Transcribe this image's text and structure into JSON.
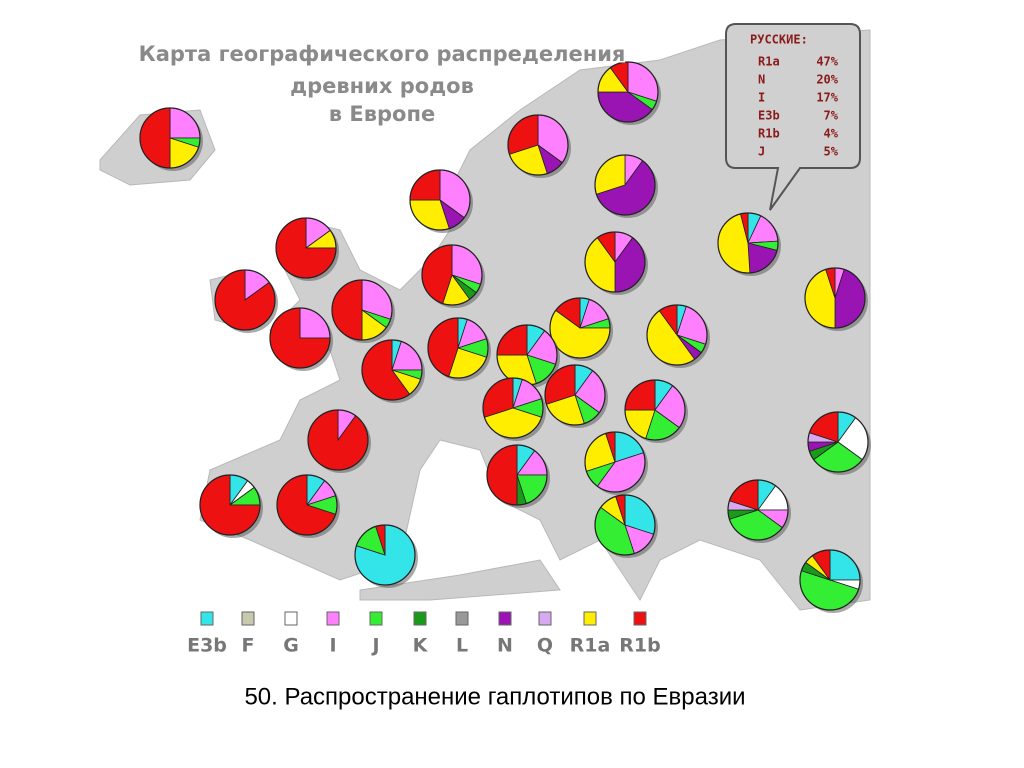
{
  "map": {
    "title": [
      "Карта географического распределения",
      "древних родов",
      "в Европе"
    ],
    "callout": {
      "title": "РУССКИЕ:",
      "names": [
        "R1a",
        "N",
        "I",
        "E3b",
        "R1b",
        "J"
      ],
      "values": [
        47,
        20,
        17,
        7,
        4,
        5
      ],
      "value_labels": [
        "47%",
        "20%",
        "17%",
        "7%",
        "4%",
        "5%"
      ]
    },
    "legend": [
      {
        "name": "E3b",
        "color": "#33e4e8"
      },
      {
        "name": "F",
        "color": "#c8c8ac"
      },
      {
        "name": "G",
        "color": "#ffffff"
      },
      {
        "name": "I",
        "color": "#ff80ff"
      },
      {
        "name": "J",
        "color": "#33ee33"
      },
      {
        "name": "K",
        "color": "#1a9a1a"
      },
      {
        "name": "L",
        "color": "#999999"
      },
      {
        "name": "N",
        "color": "#9a14b4"
      },
      {
        "name": "Q",
        "color": "#d8a8f0"
      },
      {
        "name": "R1a",
        "color": "#ffee00"
      },
      {
        "name": "R1b",
        "color": "#ee1111"
      }
    ],
    "pies": [
      {
        "values": [
          0,
          0,
          0,
          25,
          5,
          0,
          0,
          0,
          0,
          20,
          50
        ]
      },
      {
        "values": [
          0,
          0,
          0,
          30,
          5,
          0,
          0,
          40,
          0,
          15,
          10
        ]
      },
      {
        "values": [
          0,
          0,
          0,
          35,
          0,
          0,
          0,
          10,
          0,
          25,
          30
        ]
      },
      {
        "values": [
          0,
          0,
          0,
          35,
          0,
          0,
          0,
          10,
          0,
          30,
          25
        ]
      },
      {
        "values": [
          0,
          0,
          0,
          10,
          0,
          0,
          0,
          60,
          0,
          30,
          0
        ]
      },
      {
        "values": [
          0,
          0,
          0,
          15,
          0,
          0,
          0,
          0,
          0,
          10,
          75
        ]
      },
      {
        "values": [
          0,
          0,
          0,
          10,
          0,
          0,
          0,
          40,
          0,
          40,
          10
        ]
      },
      {
        "values": [
          7,
          0,
          0,
          17,
          5,
          0,
          0,
          20,
          0,
          47,
          4
        ]
      },
      {
        "values": [
          0,
          0,
          0,
          5,
          0,
          0,
          0,
          45,
          0,
          45,
          5
        ]
      },
      {
        "values": [
          0,
          0,
          0,
          15,
          0,
          0,
          0,
          0,
          0,
          0,
          85
        ]
      },
      {
        "values": [
          0,
          0,
          0,
          30,
          5,
          5,
          0,
          0,
          0,
          15,
          45
        ]
      },
      {
        "values": [
          0,
          0,
          0,
          25,
          0,
          0,
          0,
          0,
          0,
          0,
          75
        ]
      },
      {
        "values": [
          0,
          0,
          0,
          30,
          5,
          0,
          0,
          0,
          0,
          15,
          50
        ]
      },
      {
        "values": [
          5,
          0,
          0,
          15,
          5,
          0,
          0,
          0,
          0,
          60,
          15
        ]
      },
      {
        "values": [
          5,
          0,
          0,
          25,
          5,
          0,
          0,
          5,
          0,
          50,
          10
        ]
      },
      {
        "values": [
          5,
          0,
          0,
          20,
          5,
          0,
          0,
          0,
          0,
          10,
          60
        ]
      },
      {
        "values": [
          5,
          0,
          0,
          15,
          10,
          0,
          0,
          0,
          0,
          25,
          45
        ]
      },
      {
        "values": [
          10,
          0,
          0,
          20,
          15,
          0,
          0,
          0,
          0,
          30,
          25
        ]
      },
      {
        "values": [
          5,
          0,
          0,
          15,
          10,
          0,
          0,
          0,
          0,
          40,
          30
        ]
      },
      {
        "values": [
          10,
          0,
          0,
          25,
          10,
          0,
          0,
          0,
          0,
          25,
          30
        ]
      },
      {
        "values": [
          10,
          0,
          0,
          25,
          20,
          0,
          0,
          0,
          0,
          20,
          25
        ]
      },
      {
        "values": [
          0,
          0,
          0,
          10,
          0,
          0,
          0,
          0,
          0,
          0,
          90
        ]
      },
      {
        "values": [
          10,
          0,
          25,
          0,
          30,
          5,
          0,
          5,
          5,
          0,
          20
        ]
      },
      {
        "values": [
          10,
          0,
          0,
          15,
          20,
          5,
          0,
          0,
          0,
          0,
          50
        ]
      },
      {
        "values": [
          20,
          0,
          0,
          40,
          10,
          0,
          0,
          0,
          0,
          25,
          5
        ]
      },
      {
        "values": [
          10,
          0,
          5,
          0,
          10,
          0,
          0,
          0,
          0,
          0,
          75
        ]
      },
      {
        "values": [
          10,
          0,
          0,
          10,
          10,
          0,
          0,
          0,
          0,
          0,
          70
        ]
      },
      {
        "values": [
          30,
          0,
          0,
          15,
          40,
          0,
          0,
          0,
          0,
          10,
          5
        ]
      },
      {
        "values": [
          10,
          0,
          15,
          10,
          35,
          5,
          0,
          0,
          5,
          0,
          20
        ]
      },
      {
        "values": [
          80,
          0,
          0,
          0,
          15,
          0,
          0,
          0,
          0,
          0,
          5
        ]
      },
      {
        "values": [
          25,
          0,
          5,
          0,
          50,
          5,
          0,
          0,
          0,
          5,
          10
        ]
      }
    ],
    "caption": "50. Распространение гаплотипов по Евразии"
  }
}
